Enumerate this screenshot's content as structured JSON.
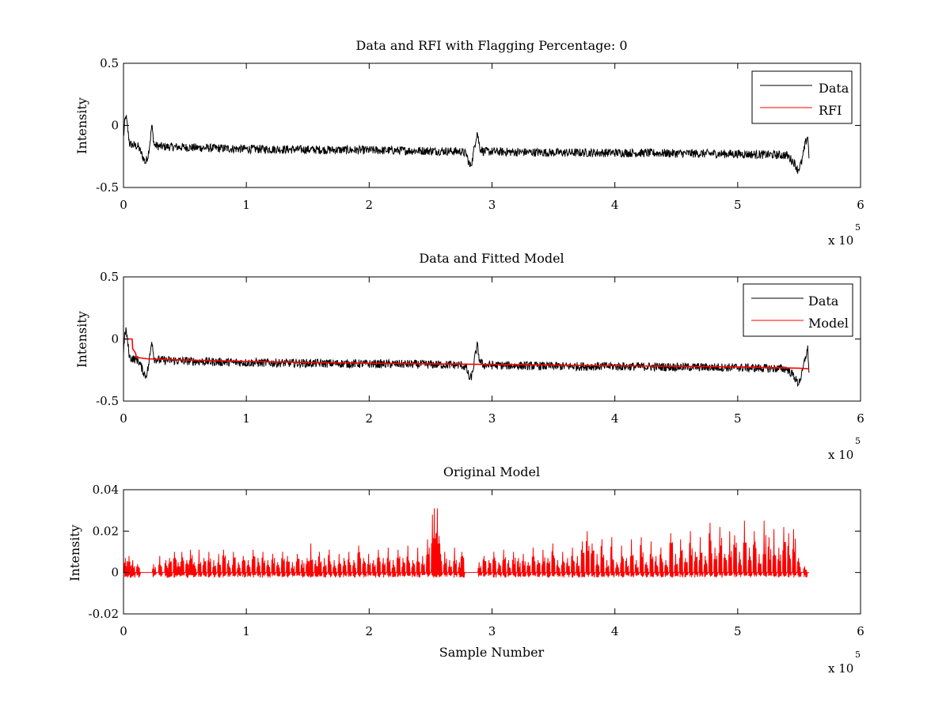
{
  "figure": {
    "background": "#ffffff",
    "axes_color": "#000000"
  },
  "chart_data": [
    {
      "type": "line",
      "title": "Data and RFI with Flagging Percentage: 0",
      "xlabel": "",
      "ylabel": "Intensity",
      "xlim": [
        0,
        600000
      ],
      "ylim": [
        -0.5,
        0.5
      ],
      "x_ticks": [
        0,
        100000,
        200000,
        300000,
        400000,
        500000,
        600000
      ],
      "x_tick_labels": [
        "0",
        "1",
        "2",
        "3",
        "4",
        "5",
        "6"
      ],
      "y_ticks": [
        -0.5,
        0,
        0.5
      ],
      "y_tick_labels": [
        "-0.5",
        "0",
        "0.5"
      ],
      "x_multiplier": {
        "prefix": "x 10",
        "exponent": "5"
      },
      "legend": {
        "placement": "top-right",
        "entries": [
          "Data",
          "RFI"
        ]
      },
      "series": [
        {
          "name": "Data",
          "color": "#000000",
          "kind": "noisy-band",
          "x": [
            0,
            1000,
            2000,
            3000,
            5000,
            8000,
            12000,
            16000,
            18000,
            20000,
            22000,
            23000,
            25000,
            30000,
            60000,
            100000,
            150000,
            200000,
            250000,
            275000,
            279000,
            282000,
            284000,
            286000,
            288000,
            290000,
            293000,
            320000,
            360000,
            400000,
            450000,
            500000,
            540000,
            546000,
            549000,
            552000,
            555000,
            557000,
            558000
          ],
          "center": [
            -0.1,
            0.02,
            0.08,
            0.0,
            -0.15,
            -0.16,
            -0.17,
            -0.26,
            -0.3,
            -0.24,
            -0.1,
            0.0,
            -0.16,
            -0.17,
            -0.18,
            -0.19,
            -0.195,
            -0.2,
            -0.205,
            -0.21,
            -0.23,
            -0.33,
            -0.28,
            -0.15,
            -0.05,
            -0.18,
            -0.21,
            -0.215,
            -0.22,
            -0.22,
            -0.225,
            -0.23,
            -0.24,
            -0.3,
            -0.36,
            -0.3,
            -0.15,
            -0.08,
            -0.25
          ],
          "amplitude": 0.035
        }
      ]
    },
    {
      "type": "line",
      "title": "Data and Fitted Model",
      "xlabel": "",
      "ylabel": "Intensity",
      "xlim": [
        0,
        600000
      ],
      "ylim": [
        -0.5,
        0.5
      ],
      "x_ticks": [
        0,
        100000,
        200000,
        300000,
        400000,
        500000,
        600000
      ],
      "x_tick_labels": [
        "0",
        "1",
        "2",
        "3",
        "4",
        "5",
        "6"
      ],
      "y_ticks": [
        -0.5,
        0,
        0.5
      ],
      "y_tick_labels": [
        "-0.5",
        "0",
        "0.5"
      ],
      "x_multiplier": {
        "prefix": "x 10",
        "exponent": "5"
      },
      "legend": {
        "placement": "top-right",
        "entries": [
          "Data",
          "Model"
        ]
      },
      "series": [
        {
          "name": "Data",
          "color": "#000000",
          "kind": "noisy-band",
          "x": [
            0,
            1000,
            2000,
            3000,
            5000,
            8000,
            12000,
            16000,
            18000,
            20000,
            22000,
            23000,
            25000,
            30000,
            60000,
            100000,
            150000,
            200000,
            250000,
            275000,
            279000,
            282000,
            284000,
            286000,
            288000,
            290000,
            293000,
            320000,
            360000,
            400000,
            450000,
            500000,
            540000,
            546000,
            549000,
            552000,
            555000,
            557000,
            558000
          ],
          "center": [
            -0.1,
            0.02,
            0.08,
            0.0,
            -0.15,
            -0.16,
            -0.17,
            -0.26,
            -0.3,
            -0.24,
            -0.1,
            0.0,
            -0.16,
            -0.17,
            -0.18,
            -0.19,
            -0.195,
            -0.2,
            -0.205,
            -0.21,
            -0.23,
            -0.33,
            -0.28,
            -0.15,
            -0.05,
            -0.18,
            -0.21,
            -0.215,
            -0.22,
            -0.22,
            -0.225,
            -0.23,
            -0.24,
            -0.3,
            -0.36,
            -0.3,
            -0.15,
            -0.08,
            -0.25
          ],
          "amplitude": 0.035
        },
        {
          "name": "Model",
          "color": "#ff0000",
          "kind": "line",
          "x": [
            0,
            7000,
            7500,
            9000,
            10000,
            10500,
            12000,
            20000,
            50000,
            100000,
            150000,
            200000,
            250000,
            300000,
            350000,
            400000,
            450000,
            500000,
            550000,
            558000
          ],
          "y": [
            0.0,
            0.0,
            -0.08,
            -0.1,
            -0.12,
            -0.15,
            -0.15,
            -0.16,
            -0.17,
            -0.18,
            -0.19,
            -0.195,
            -0.2,
            -0.205,
            -0.21,
            -0.215,
            -0.22,
            -0.225,
            -0.235,
            -0.24
          ]
        }
      ]
    },
    {
      "type": "line",
      "title": "Original Model",
      "xlabel": "Sample Number",
      "ylabel": "Intensity",
      "xlim": [
        0,
        600000
      ],
      "ylim": [
        -0.02,
        0.04
      ],
      "x_ticks": [
        0,
        100000,
        200000,
        300000,
        400000,
        500000,
        600000
      ],
      "x_tick_labels": [
        "0",
        "1",
        "2",
        "3",
        "4",
        "5",
        "6"
      ],
      "y_ticks": [
        -0.02,
        0,
        0.02,
        0.04
      ],
      "y_tick_labels": [
        "-0.02",
        "0",
        "0.02",
        "0.04"
      ],
      "x_multiplier": {
        "prefix": "x 10",
        "exponent": "5"
      },
      "series": [
        {
          "name": "",
          "color": "#ff0000",
          "kind": "spikes",
          "x_range": [
            0,
            558000
          ],
          "baseline": 0,
          "spikes": [
            [
              2000,
              0.007
            ],
            [
              5000,
              0.008
            ],
            [
              8000,
              0.006
            ],
            [
              12000,
              0.004
            ],
            [
              25000,
              0.004
            ],
            [
              30000,
              0.008
            ],
            [
              35000,
              0.006
            ],
            [
              38000,
              0.007
            ],
            [
              42000,
              0.01
            ],
            [
              45000,
              0.005
            ],
            [
              48000,
              0.01
            ],
            [
              52000,
              0.006
            ],
            [
              55000,
              0.011
            ],
            [
              58000,
              0.005
            ],
            [
              62000,
              0.011
            ],
            [
              66000,
              0.007
            ],
            [
              70000,
              0.01
            ],
            [
              74000,
              0.006
            ],
            [
              78000,
              0.009
            ],
            [
              82000,
              0.011
            ],
            [
              86000,
              0.006
            ],
            [
              90000,
              0.01
            ],
            [
              94000,
              0.005
            ],
            [
              98000,
              0.008
            ],
            [
              102000,
              0.006
            ],
            [
              106000,
              0.011
            ],
            [
              110000,
              0.007
            ],
            [
              114000,
              0.01
            ],
            [
              118000,
              0.006
            ],
            [
              122000,
              0.009
            ],
            [
              126000,
              0.005
            ],
            [
              130000,
              0.01
            ],
            [
              134000,
              0.008
            ],
            [
              138000,
              0.005
            ],
            [
              142000,
              0.009
            ],
            [
              146000,
              0.006
            ],
            [
              150000,
              0.007
            ],
            [
              153000,
              0.014
            ],
            [
              157000,
              0.006
            ],
            [
              160000,
              0.01
            ],
            [
              164000,
              0.007
            ],
            [
              168000,
              0.011
            ],
            [
              172000,
              0.006
            ],
            [
              176000,
              0.009
            ],
            [
              180000,
              0.007
            ],
            [
              184000,
              0.01
            ],
            [
              188000,
              0.006
            ],
            [
              192000,
              0.013
            ],
            [
              196000,
              0.007
            ],
            [
              200000,
              0.009
            ],
            [
              204000,
              0.006
            ],
            [
              208000,
              0.011
            ],
            [
              212000,
              0.007
            ],
            [
              216000,
              0.012
            ],
            [
              220000,
              0.006
            ],
            [
              224000,
              0.011
            ],
            [
              228000,
              0.007
            ],
            [
              232000,
              0.013
            ],
            [
              236000,
              0.006
            ],
            [
              240000,
              0.012
            ],
            [
              244000,
              0.008
            ],
            [
              248000,
              0.016
            ],
            [
              252000,
              0.028
            ],
            [
              253500,
              0.031
            ],
            [
              256000,
              0.031
            ],
            [
              258000,
              0.014
            ],
            [
              262000,
              0.01
            ],
            [
              266000,
              0.006
            ],
            [
              270000,
              0.012
            ],
            [
              274000,
              0.005
            ],
            [
              276000,
              0.01
            ],
            [
              290000,
              0.005
            ],
            [
              294000,
              0.008
            ],
            [
              298000,
              0.006
            ],
            [
              302000,
              0.01
            ],
            [
              306000,
              0.005
            ],
            [
              310000,
              0.011
            ],
            [
              314000,
              0.006
            ],
            [
              318000,
              0.01
            ],
            [
              322000,
              0.007
            ],
            [
              326000,
              0.009
            ],
            [
              330000,
              0.005
            ],
            [
              334000,
              0.012
            ],
            [
              338000,
              0.006
            ],
            [
              342000,
              0.011
            ],
            [
              346000,
              0.007
            ],
            [
              350000,
              0.014
            ],
            [
              354000,
              0.006
            ],
            [
              358000,
              0.01
            ],
            [
              362000,
              0.007
            ],
            [
              366000,
              0.012
            ],
            [
              370000,
              0.008
            ],
            [
              374000,
              0.015
            ],
            [
              378000,
              0.02
            ],
            [
              382000,
              0.014
            ],
            [
              386000,
              0.009
            ],
            [
              390000,
              0.016
            ],
            [
              394000,
              0.006
            ],
            [
              398000,
              0.017
            ],
            [
              402000,
              0.005
            ],
            [
              406000,
              0.013
            ],
            [
              410000,
              0.007
            ],
            [
              414000,
              0.016
            ],
            [
              418000,
              0.006
            ],
            [
              422000,
              0.017
            ],
            [
              426000,
              0.005
            ],
            [
              430000,
              0.015
            ],
            [
              434000,
              0.008
            ],
            [
              438000,
              0.012
            ],
            [
              442000,
              0.006
            ],
            [
              446000,
              0.019
            ],
            [
              450000,
              0.009
            ],
            [
              454000,
              0.016
            ],
            [
              458000,
              0.007
            ],
            [
              462000,
              0.02
            ],
            [
              466000,
              0.01
            ],
            [
              470000,
              0.017
            ],
            [
              474000,
              0.008
            ],
            [
              478000,
              0.024
            ],
            [
              482000,
              0.012
            ],
            [
              486000,
              0.022
            ],
            [
              490000,
              0.009
            ],
            [
              494000,
              0.02
            ],
            [
              498000,
              0.018
            ],
            [
              502000,
              0.01
            ],
            [
              506000,
              0.025
            ],
            [
              510000,
              0.012
            ],
            [
              514000,
              0.02
            ],
            [
              518000,
              0.009
            ],
            [
              522000,
              0.025
            ],
            [
              526000,
              0.017
            ],
            [
              530000,
              0.021
            ],
            [
              534000,
              0.012
            ],
            [
              538000,
              0.022
            ],
            [
              542000,
              0.019
            ],
            [
              546000,
              0.021
            ],
            [
              550000,
              0.007
            ],
            [
              555000,
              0.003
            ]
          ]
        }
      ]
    }
  ]
}
